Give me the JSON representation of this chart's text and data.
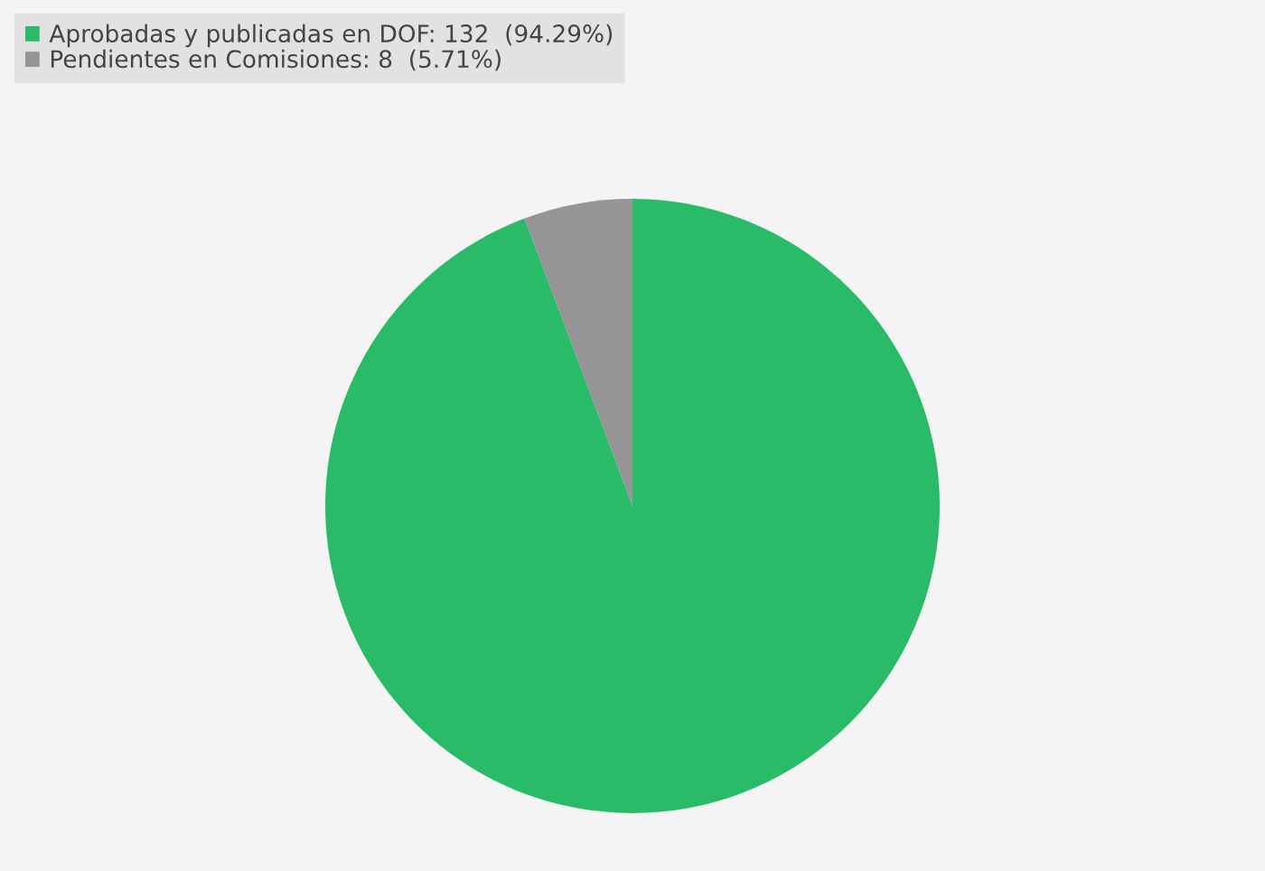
{
  "chart_data": {
    "type": "pie",
    "categories": [
      "Aprobadas y publicadas en DOF",
      "Pendientes en Comisiones"
    ],
    "values": [
      132,
      8
    ],
    "value_labels": [
      "132  (94.29%)",
      "8  (5.71%)"
    ],
    "colors": [
      "#2abb69",
      "#959595"
    ],
    "legend": "top left"
  }
}
